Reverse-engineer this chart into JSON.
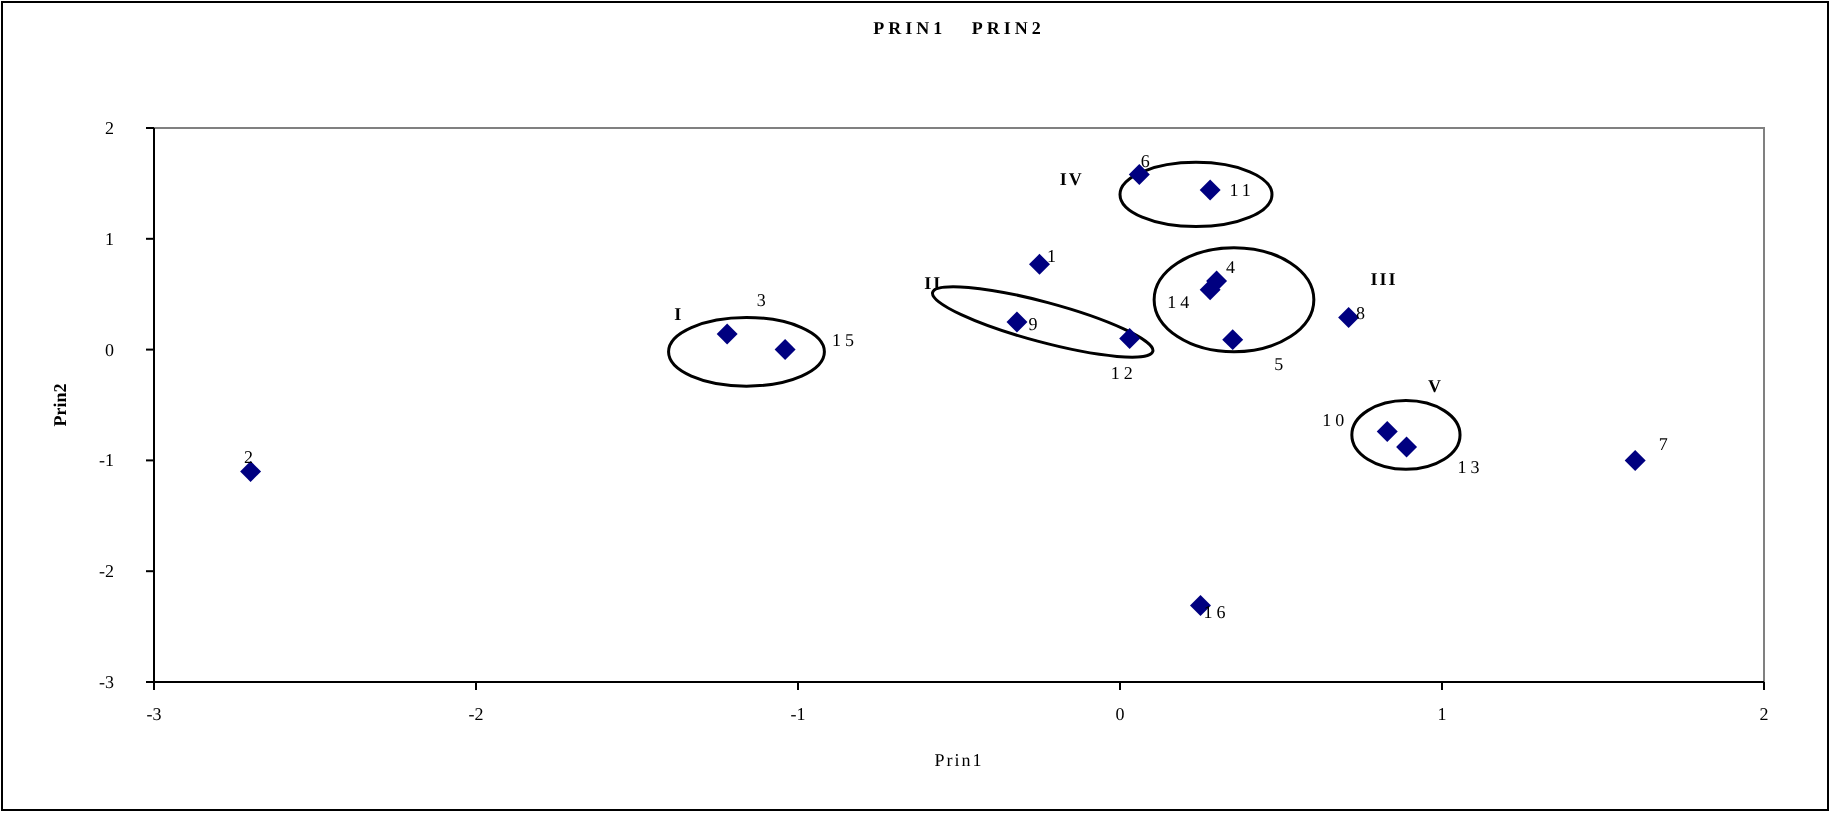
{
  "chart_data": {
    "type": "scatter",
    "title": "PRIN1   PRIN2",
    "xlabel": "Prin1",
    "ylabel": "Prin2",
    "xlim": [
      -3,
      2
    ],
    "ylim": [
      -3,
      2
    ],
    "xticks": [
      -3,
      -2,
      -1,
      0,
      1,
      2
    ],
    "yticks": [
      -3,
      -2,
      -1,
      0,
      1,
      2
    ],
    "grid": false,
    "marker": "diamond",
    "series": [
      {
        "color": "#000080",
        "x": [
          -0.25,
          -2.7,
          -1.22,
          0.3,
          0.35,
          0.06,
          1.6,
          0.71,
          -0.32,
          0.83,
          0.28,
          0.03,
          0.89,
          0.28,
          -1.04,
          0.25
        ],
        "values": [
          0.77,
          -1.1,
          0.14,
          0.62,
          0.09,
          1.58,
          -1.0,
          0.29,
          0.25,
          -0.74,
          1.44,
          0.1,
          -0.88,
          0.54,
          0.0,
          -2.31
        ]
      }
    ],
    "annotations": [
      {
        "text": "1",
        "x": -0.25,
        "y": 0.77
      },
      {
        "text": "2",
        "x": -2.7,
        "y": -1.1
      },
      {
        "text": "3",
        "x": -1.22,
        "y": 0.14
      },
      {
        "text": "4",
        "x": 0.3,
        "y": 0.62
      },
      {
        "text": "5",
        "x": 0.35,
        "y": 0.09
      },
      {
        "text": "6",
        "x": 0.06,
        "y": 1.58
      },
      {
        "text": "7",
        "x": 1.6,
        "y": -1.0
      },
      {
        "text": "8",
        "x": 0.71,
        "y": 0.29
      },
      {
        "text": "9",
        "x": -0.32,
        "y": 0.25
      },
      {
        "text": "10",
        "x": 0.83,
        "y": -0.74
      },
      {
        "text": "11",
        "x": 0.28,
        "y": 1.44
      },
      {
        "text": "12",
        "x": 0.03,
        "y": 0.1
      },
      {
        "text": "13",
        "x": 0.89,
        "y": -0.88
      },
      {
        "text": "14",
        "x": 0.28,
        "y": 0.54
      },
      {
        "text": "15",
        "x": -1.04,
        "y": 0.0
      },
      {
        "text": "16",
        "x": 0.25,
        "y": -2.31
      },
      "I",
      "II",
      "III",
      "IV",
      "V"
    ]
  }
}
